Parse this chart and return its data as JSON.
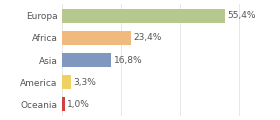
{
  "categories": [
    "Europa",
    "Africa",
    "Asia",
    "America",
    "Oceania"
  ],
  "values": [
    55.4,
    23.4,
    16.8,
    3.3,
    1.0
  ],
  "labels": [
    "55,4%",
    "23,4%",
    "16,8%",
    "3,3%",
    "1,0%"
  ],
  "colors": [
    "#b5c98e",
    "#f0b97d",
    "#8098c0",
    "#f0d060",
    "#d04040"
  ],
  "background_color": "#ffffff",
  "label_fontsize": 6.5,
  "bar_height": 0.65,
  "xlim": [
    0,
    72
  ],
  "figsize": [
    2.8,
    1.2
  ],
  "dpi": 100
}
